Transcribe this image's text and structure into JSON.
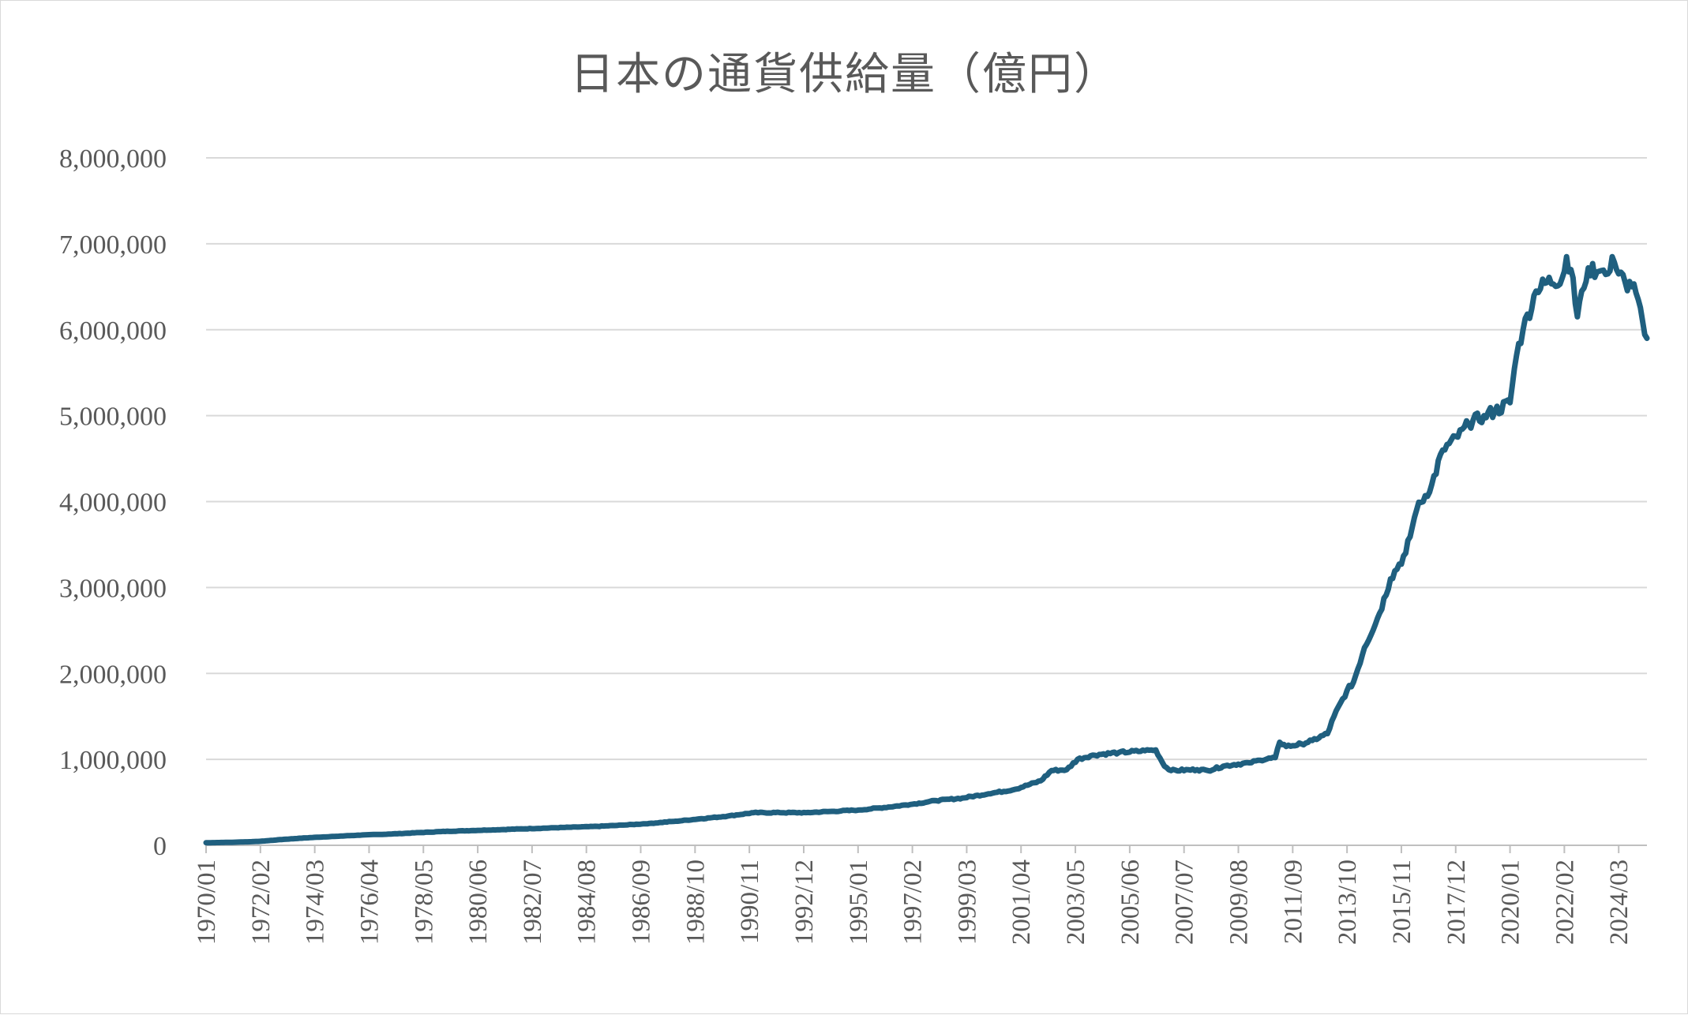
{
  "chart_data": {
    "type": "line",
    "title": "日本の通貨供給量（億円）",
    "xlabel": "",
    "ylabel": "",
    "ylim": [
      0,
      8000000
    ],
    "grid": true,
    "legend": "none",
    "y_ticks": [
      "0",
      "1,000,000",
      "2,000,000",
      "3,000,000",
      "4,000,000",
      "5,000,000",
      "6,000,000",
      "7,000,000",
      "8,000,000"
    ],
    "x_tick_labels": [
      "1970/01",
      "1972/02",
      "1974/03",
      "1976/04",
      "1978/05",
      "1980/06",
      "1982/07",
      "1984/08",
      "1986/09",
      "1988/10",
      "1990/11",
      "1992/12",
      "1995/01",
      "1997/02",
      "1999/03",
      "2001/04",
      "2003/05",
      "2005/06",
      "2007/07",
      "2009/08",
      "2011/09",
      "2013/10",
      "2015/11",
      "2017/12",
      "2020/01",
      "2022/02",
      "2024/03"
    ],
    "line_color": "#1f5f7f",
    "series": [
      {
        "points": [
          [
            "1970/01",
            30000
          ],
          [
            "1971/01",
            35000
          ],
          [
            "1972/01",
            45000
          ],
          [
            "1973/01",
            70000
          ],
          [
            "1974/01",
            90000
          ],
          [
            "1975/01",
            105000
          ],
          [
            "1976/01",
            120000
          ],
          [
            "1977/01",
            130000
          ],
          [
            "1978/01",
            145000
          ],
          [
            "1979/01",
            160000
          ],
          [
            "1980/01",
            170000
          ],
          [
            "1981/01",
            180000
          ],
          [
            "1982/01",
            190000
          ],
          [
            "1983/01",
            200000
          ],
          [
            "1984/01",
            210000
          ],
          [
            "1985/01",
            220000
          ],
          [
            "1986/01",
            235000
          ],
          [
            "1987/01",
            255000
          ],
          [
            "1988/01",
            280000
          ],
          [
            "1989/01",
            310000
          ],
          [
            "1990/01",
            340000
          ],
          [
            "1991/01",
            380000
          ],
          [
            "1992/01",
            380000
          ],
          [
            "1993/01",
            380000
          ],
          [
            "1994/01",
            395000
          ],
          [
            "1995/01",
            410000
          ],
          [
            "1996/01",
            440000
          ],
          [
            "1997/01",
            475000
          ],
          [
            "1998/01",
            520000
          ],
          [
            "1999/01",
            550000
          ],
          [
            "2000/01",
            600000
          ],
          [
            "2001/01",
            650000
          ],
          [
            "2002/01",
            750000
          ],
          [
            "2002/06",
            870000
          ],
          [
            "2003/01",
            880000
          ],
          [
            "2003/06",
            1000000
          ],
          [
            "2004/01",
            1050000
          ],
          [
            "2005/01",
            1080000
          ],
          [
            "2006/01",
            1100000
          ],
          [
            "2006/06",
            1110000
          ],
          [
            "2006/10",
            920000
          ],
          [
            "2007/01",
            870000
          ],
          [
            "2008/01",
            880000
          ],
          [
            "2008/06",
            870000
          ],
          [
            "2009/01",
            920000
          ],
          [
            "2009/06",
            940000
          ],
          [
            "2010/01",
            960000
          ],
          [
            "2010/06",
            990000
          ],
          [
            "2011/01",
            1020000
          ],
          [
            "2011/03",
            1200000
          ],
          [
            "2011/06",
            1150000
          ],
          [
            "2012/01",
            1180000
          ],
          [
            "2012/06",
            1220000
          ],
          [
            "2013/01",
            1300000
          ],
          [
            "2013/04",
            1500000
          ],
          [
            "2013/10",
            1800000
          ],
          [
            "2014/01",
            1900000
          ],
          [
            "2014/06",
            2300000
          ],
          [
            "2015/01",
            2700000
          ],
          [
            "2015/06",
            3100000
          ],
          [
            "2016/01",
            3400000
          ],
          [
            "2016/06",
            3900000
          ],
          [
            "2017/01",
            4200000
          ],
          [
            "2017/06",
            4600000
          ],
          [
            "2018/01",
            4750000
          ],
          [
            "2018/06",
            4900000
          ],
          [
            "2019/01",
            5000000
          ],
          [
            "2019/06",
            5050000
          ],
          [
            "2020/01",
            5150000
          ],
          [
            "2020/04",
            5700000
          ],
          [
            "2020/07",
            6000000
          ],
          [
            "2021/01",
            6450000
          ],
          [
            "2021/06",
            6550000
          ],
          [
            "2022/01",
            6600000
          ],
          [
            "2022/03",
            6850000
          ],
          [
            "2022/05",
            6700000
          ],
          [
            "2022/08",
            6150000
          ],
          [
            "2022/10",
            6450000
          ],
          [
            "2023/01",
            6720000
          ],
          [
            "2023/06",
            6680000
          ],
          [
            "2023/10",
            6650000
          ],
          [
            "2023/12",
            6850000
          ],
          [
            "2024/03",
            6650000
          ],
          [
            "2024/06",
            6550000
          ],
          [
            "2024/09",
            6500000
          ],
          [
            "2024/12",
            6350000
          ],
          [
            "2025/02",
            6100000
          ],
          [
            "2025/04",
            5900000
          ]
        ]
      }
    ]
  }
}
